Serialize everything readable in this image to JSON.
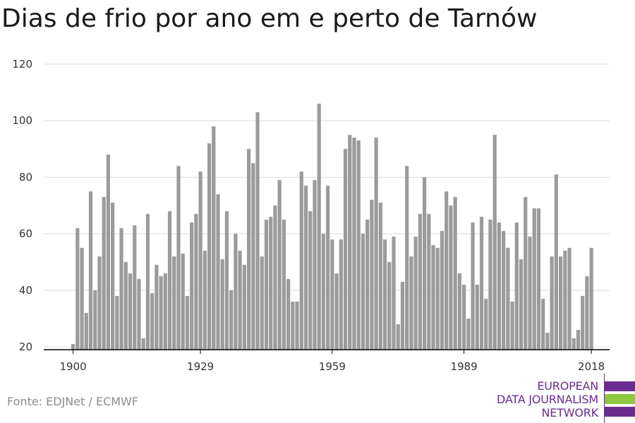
{
  "title": "Dias de frio por ano em e perto de Tarnów",
  "source": "Fonte: EDJNet / ECMWF",
  "logo": {
    "lines": [
      "EUROPEAN",
      "DATA JOURNALISM",
      "NETWORK"
    ],
    "colors": {
      "purple": "#6a2d8f",
      "green": "#8dc63f"
    }
  },
  "chart_data": {
    "type": "bar",
    "title": "Dias de frio por ano em e perto de Tarnów",
    "xlabel": "",
    "ylabel": "",
    "ylim": [
      19,
      120
    ],
    "yticks": [
      20,
      40,
      60,
      80,
      100,
      120
    ],
    "xticks": [
      1900,
      1929,
      1959,
      1989,
      2018
    ],
    "grid": true,
    "bar_color": "#9b9b9b",
    "x": [
      1900,
      1901,
      1902,
      1903,
      1904,
      1905,
      1906,
      1907,
      1908,
      1909,
      1910,
      1911,
      1912,
      1913,
      1914,
      1915,
      1916,
      1917,
      1918,
      1919,
      1920,
      1921,
      1922,
      1923,
      1924,
      1925,
      1926,
      1927,
      1928,
      1929,
      1930,
      1931,
      1932,
      1933,
      1934,
      1935,
      1936,
      1937,
      1938,
      1939,
      1940,
      1941,
      1942,
      1943,
      1944,
      1945,
      1946,
      1947,
      1948,
      1949,
      1950,
      1951,
      1952,
      1953,
      1954,
      1955,
      1956,
      1957,
      1958,
      1959,
      1960,
      1961,
      1962,
      1963,
      1964,
      1965,
      1966,
      1967,
      1968,
      1969,
      1970,
      1971,
      1972,
      1973,
      1974,
      1975,
      1976,
      1977,
      1978,
      1979,
      1980,
      1981,
      1982,
      1983,
      1984,
      1985,
      1986,
      1987,
      1988,
      1989,
      1990,
      1991,
      1992,
      1993,
      1994,
      1995,
      1996,
      1997,
      1998,
      1999,
      2000,
      2001,
      2002,
      2003,
      2004,
      2005,
      2006,
      2007,
      2008,
      2009,
      2010,
      2011,
      2012,
      2013,
      2014,
      2015,
      2016,
      2017,
      2018
    ],
    "values": [
      21,
      62,
      55,
      32,
      75,
      40,
      52,
      73,
      88,
      71,
      38,
      62,
      50,
      46,
      63,
      44,
      23,
      67,
      39,
      49,
      45,
      46,
      68,
      52,
      84,
      53,
      38,
      64,
      67,
      82,
      54,
      92,
      98,
      74,
      51,
      68,
      40,
      60,
      54,
      49,
      90,
      85,
      103,
      52,
      65,
      66,
      70,
      79,
      65,
      44,
      36,
      36,
      82,
      77,
      68,
      79,
      106,
      60,
      77,
      58,
      46,
      58,
      90,
      95,
      94,
      93,
      60,
      65,
      72,
      94,
      71,
      58,
      50,
      59,
      28,
      43,
      84,
      52,
      59,
      67,
      80,
      67,
      56,
      55,
      61,
      75,
      70,
      73,
      46,
      42,
      30,
      64,
      42,
      66,
      37,
      65,
      95,
      64,
      61,
      55,
      36,
      64,
      51,
      73,
      59,
      69,
      69,
      37,
      25,
      52,
      81,
      52,
      54,
      55,
      23,
      26,
      38,
      45,
      55
    ]
  }
}
